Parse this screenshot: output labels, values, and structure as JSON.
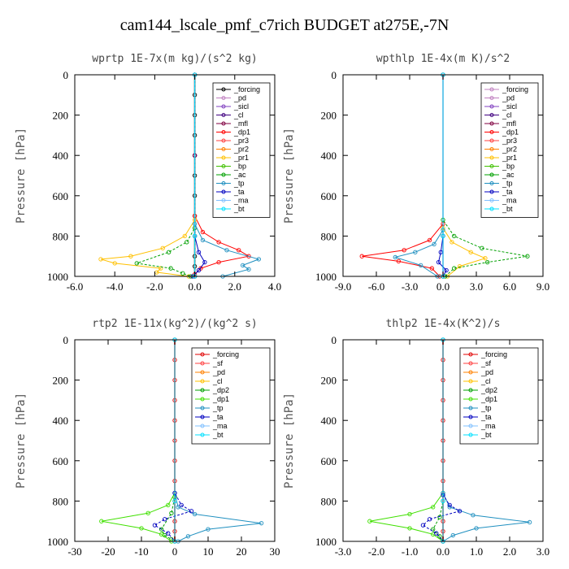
{
  "title": "cam144_lscale_pmf_c7rich  BUDGET at275E,-7N",
  "chart_data": [
    {
      "type": "line",
      "title": "wprtp  1E-7x(m kg)/(s^2 kg)",
      "ylabel": "Pressure [hPa]",
      "xlim": [
        -6,
        4
      ],
      "ylim": [
        1000,
        0
      ],
      "xticks": [
        "-6.0",
        "-4.0",
        "-2.0",
        "0.0",
        "2.0",
        "4.0"
      ],
      "yticks": [
        "0",
        "200",
        "400",
        "600",
        "800",
        "1000"
      ],
      "legend_position": "top-right",
      "series": [
        {
          "name": "_forcing",
          "color": "#000000",
          "x": [
            0,
            0,
            0,
            0,
            0,
            0,
            0,
            0,
            0,
            0,
            0,
            0
          ],
          "y": [
            0,
            100,
            200,
            300,
            400,
            500,
            600,
            700,
            800,
            900,
            950,
            1000
          ]
        },
        {
          "name": "_pd",
          "color": "#c080c0",
          "x": [
            0,
            0,
            0,
            0
          ],
          "y": [
            0,
            400,
            800,
            1000
          ]
        },
        {
          "name": "_sicl",
          "color": "#8040c0",
          "x": [
            0,
            0,
            0,
            0
          ],
          "y": [
            0,
            400,
            800,
            1000
          ]
        },
        {
          "name": "_cl",
          "color": "#400080",
          "x": [
            0,
            0,
            0,
            0
          ],
          "y": [
            0,
            400,
            800,
            1000
          ]
        },
        {
          "name": "_mfl",
          "color": "#800040",
          "x": [
            0,
            0,
            0,
            0
          ],
          "y": [
            0,
            400,
            800,
            1000
          ]
        },
        {
          "name": "_dp1",
          "color": "#ff0000",
          "x": [
            0,
            0,
            0.4,
            1.2,
            2.2,
            2.7,
            1.2,
            0.3,
            0,
            0
          ],
          "y": [
            0,
            700,
            780,
            830,
            870,
            900,
            930,
            960,
            990,
            1000
          ]
        },
        {
          "name": "_pr3",
          "color": "#ff4040",
          "x": [
            0,
            0,
            0
          ],
          "y": [
            0,
            800,
            1000
          ]
        },
        {
          "name": "_pr2",
          "color": "#ff8000",
          "x": [
            0,
            0,
            0
          ],
          "y": [
            0,
            800,
            1000
          ]
        },
        {
          "name": "_pr1",
          "color": "#ffc000",
          "x": [
            0,
            0,
            -0.5,
            -1.6,
            -3.2,
            -4.7,
            -4.0,
            -1.7,
            -1.9,
            -0.3
          ],
          "y": [
            0,
            720,
            800,
            860,
            900,
            915,
            935,
            960,
            980,
            1000
          ]
        },
        {
          "name": "_bp",
          "color": "#40c000",
          "x": [
            0,
            0,
            0
          ],
          "y": [
            0,
            800,
            1000
          ]
        },
        {
          "name": "_ac",
          "color": "#00a000",
          "x": [
            0,
            0,
            -0.4,
            -1.3,
            -2.9,
            -1.2,
            -0.6,
            -0.2
          ],
          "y": [
            0,
            760,
            830,
            880,
            935,
            960,
            985,
            1000
          ]
        },
        {
          "name": "_tp",
          "color": "#2090c0",
          "x": [
            0,
            0,
            0.4,
            1.6,
            3.2,
            2.4,
            2.7,
            1.4
          ],
          "y": [
            0,
            740,
            820,
            870,
            915,
            945,
            965,
            1000
          ]
        },
        {
          "name": "_ta",
          "color": "#0000c0",
          "x": [
            0,
            0,
            0.2,
            0.5,
            0.2,
            -0.1
          ],
          "y": [
            0,
            800,
            880,
            930,
            970,
            1000
          ]
        },
        {
          "name": "_ma",
          "color": "#80c0ff",
          "x": [
            0,
            0,
            0
          ],
          "y": [
            0,
            800,
            1000
          ]
        },
        {
          "name": "_bt",
          "color": "#00e0ff",
          "x": [
            0,
            0,
            0
          ],
          "y": [
            0,
            800,
            1000
          ]
        }
      ]
    },
    {
      "type": "line",
      "title": "wpthlp  1E-4x(m K)/s^2",
      "ylabel": "Pressure [hPa]",
      "xlim": [
        -9,
        9
      ],
      "ylim": [
        1000,
        0
      ],
      "xticks": [
        "-9.0",
        "-6.0",
        "-3.0",
        "0.0",
        "3.0",
        "6.0",
        "9.0"
      ],
      "yticks": [
        "0",
        "200",
        "400",
        "600",
        "800",
        "1000"
      ],
      "legend_position": "top-right",
      "series": [
        {
          "name": "_forcing",
          "color": "#c080c0",
          "x": [
            0,
            0,
            0
          ],
          "y": [
            0,
            800,
            1000
          ]
        },
        {
          "name": "_pd",
          "color": "#c080c0",
          "x": [
            0,
            0,
            0
          ],
          "y": [
            0,
            800,
            1000
          ]
        },
        {
          "name": "_sicl",
          "color": "#8040c0",
          "x": [
            0,
            0,
            0
          ],
          "y": [
            0,
            800,
            1000
          ]
        },
        {
          "name": "_cl",
          "color": "#400080",
          "x": [
            0,
            0,
            0
          ],
          "y": [
            0,
            800,
            1000
          ]
        },
        {
          "name": "_mfl",
          "color": "#800040",
          "x": [
            0,
            0,
            0
          ],
          "y": [
            0,
            800,
            1000
          ]
        },
        {
          "name": "_dp1",
          "color": "#ff0000",
          "x": [
            0,
            0,
            -1.2,
            -3.5,
            -7.3,
            -4.0,
            -1.0,
            -0.3
          ],
          "y": [
            0,
            740,
            820,
            870,
            900,
            925,
            960,
            1000
          ]
        },
        {
          "name": "_pr3",
          "color": "#ff4040",
          "x": [
            0,
            0,
            0
          ],
          "y": [
            0,
            800,
            1000
          ]
        },
        {
          "name": "_pr2",
          "color": "#ff8000",
          "x": [
            0,
            0,
            0
          ],
          "y": [
            0,
            800,
            1000
          ]
        },
        {
          "name": "_pr1",
          "color": "#ffc000",
          "x": [
            0,
            0,
            0.8,
            2.5,
            3.8,
            1.5,
            0.4
          ],
          "y": [
            0,
            760,
            830,
            880,
            910,
            950,
            1000
          ]
        },
        {
          "name": "_bp",
          "color": "#40c000",
          "x": [
            0,
            0,
            0
          ],
          "y": [
            0,
            800,
            1000
          ]
        },
        {
          "name": "_ac",
          "color": "#00a000",
          "x": [
            0,
            0,
            1.0,
            3.5,
            7.6,
            4.0,
            1.0,
            0.2
          ],
          "y": [
            0,
            720,
            800,
            860,
            900,
            930,
            960,
            1000
          ]
        },
        {
          "name": "_tp",
          "color": "#2090c0",
          "x": [
            0,
            0,
            -0.8,
            -2.5,
            -4.3,
            -2.0,
            -0.5
          ],
          "y": [
            0,
            770,
            840,
            880,
            905,
            945,
            1000
          ]
        },
        {
          "name": "_ta",
          "color": "#0000c0",
          "x": [
            0,
            0,
            -0.2,
            -0.4,
            0.3,
            0
          ],
          "y": [
            0,
            800,
            880,
            930,
            970,
            1000
          ]
        },
        {
          "name": "_ma",
          "color": "#80c0ff",
          "x": [
            0,
            0,
            0
          ],
          "y": [
            0,
            800,
            1000
          ]
        },
        {
          "name": "_bt",
          "color": "#00e0ff",
          "x": [
            0,
            0,
            0
          ],
          "y": [
            0,
            800,
            1000
          ]
        }
      ]
    },
    {
      "type": "line",
      "title": "rtp2  1E-11x(kg^2)/(kg^2 s)",
      "ylabel": "Pressure [hPa]",
      "xlim": [
        -30,
        30
      ],
      "ylim": [
        1000,
        0
      ],
      "xticks": [
        "-30",
        "-20",
        "-10",
        "0",
        "10",
        "20",
        "30"
      ],
      "yticks": [
        "0",
        "200",
        "400",
        "600",
        "800",
        "1000"
      ],
      "legend_position": "top-right",
      "series": [
        {
          "name": "_forcing",
          "color": "#e00000",
          "x": [
            0,
            0,
            0,
            0,
            0,
            0,
            0,
            0,
            0,
            0,
            0,
            0
          ],
          "y": [
            0,
            100,
            200,
            300,
            400,
            500,
            600,
            700,
            800,
            900,
            950,
            1000
          ]
        },
        {
          "name": "_sf",
          "color": "#ff4040",
          "x": [
            0,
            0,
            0
          ],
          "y": [
            0,
            800,
            1000
          ]
        },
        {
          "name": "_pd",
          "color": "#ff8000",
          "x": [
            0,
            0,
            0
          ],
          "y": [
            0,
            800,
            1000
          ]
        },
        {
          "name": "_cl",
          "color": "#ffc000",
          "x": [
            0,
            0,
            0
          ],
          "y": [
            0,
            800,
            1000
          ]
        },
        {
          "name": "_dp2",
          "color": "#00a000",
          "x": [
            0,
            0,
            -1,
            -4,
            -3,
            -1,
            0
          ],
          "y": [
            0,
            780,
            860,
            940,
            970,
            990,
            1000
          ]
        },
        {
          "name": "_dp1",
          "color": "#40e000",
          "x": [
            0,
            0,
            -2,
            -8,
            -22,
            -10,
            -4,
            -1
          ],
          "y": [
            0,
            760,
            820,
            860,
            900,
            935,
            965,
            1000
          ]
        },
        {
          "name": "_tp",
          "color": "#2090c0",
          "x": [
            0,
            0,
            1,
            6,
            26,
            10,
            4,
            1
          ],
          "y": [
            0,
            760,
            830,
            865,
            910,
            940,
            975,
            1000
          ]
        },
        {
          "name": "_ta",
          "color": "#0000c0",
          "x": [
            0,
            0,
            2,
            5,
            -3,
            -6,
            -2,
            0
          ],
          "y": [
            0,
            760,
            820,
            850,
            890,
            920,
            960,
            1000
          ]
        },
        {
          "name": "_ma",
          "color": "#80c0ff",
          "x": [
            0,
            0,
            0
          ],
          "y": [
            0,
            800,
            1000
          ]
        },
        {
          "name": "_bt",
          "color": "#00e0ff",
          "x": [
            0,
            0,
            0
          ],
          "y": [
            0,
            800,
            1000
          ]
        }
      ]
    },
    {
      "type": "line",
      "title": "thlp2  1E-4x(K^2)/s",
      "ylabel": "Pressure [hPa]",
      "xlim": [
        -3,
        3
      ],
      "ylim": [
        1000,
        0
      ],
      "xticks": [
        "-3.0",
        "-2.0",
        "-1.0",
        "0.0",
        "1.0",
        "2.0",
        "3.0"
      ],
      "yticks": [
        "0",
        "200",
        "400",
        "600",
        "800",
        "1000"
      ],
      "legend_position": "top-right",
      "series": [
        {
          "name": "_forcing",
          "color": "#e00000",
          "x": [
            0,
            0,
            0,
            0,
            0,
            0,
            0,
            0,
            0,
            0,
            0,
            0
          ],
          "y": [
            0,
            100,
            200,
            300,
            400,
            500,
            600,
            700,
            800,
            900,
            950,
            1000
          ]
        },
        {
          "name": "_sf",
          "color": "#ff4040",
          "x": [
            0,
            0,
            0
          ],
          "y": [
            0,
            800,
            1000
          ]
        },
        {
          "name": "_pd",
          "color": "#ff8000",
          "x": [
            0,
            0,
            0
          ],
          "y": [
            0,
            800,
            1000
          ]
        },
        {
          "name": "_cl",
          "color": "#ffc000",
          "x": [
            0,
            0,
            0
          ],
          "y": [
            0,
            800,
            1000
          ]
        },
        {
          "name": "_dp2",
          "color": "#00a000",
          "x": [
            0,
            0,
            -0.1,
            -0.3,
            -0.1,
            0
          ],
          "y": [
            0,
            800,
            880,
            940,
            975,
            1000
          ]
        },
        {
          "name": "_dp1",
          "color": "#40e000",
          "x": [
            0,
            0,
            -0.3,
            -1.0,
            -2.2,
            -1.0,
            -0.3,
            0
          ],
          "y": [
            0,
            760,
            830,
            865,
            900,
            935,
            965,
            1000
          ]
        },
        {
          "name": "_tp",
          "color": "#2090c0",
          "x": [
            0,
            0,
            0.2,
            0.9,
            2.6,
            1.0,
            0.3,
            0
          ],
          "y": [
            0,
            760,
            830,
            870,
            905,
            935,
            970,
            1000
          ]
        },
        {
          "name": "_ta",
          "color": "#0000c0",
          "x": [
            0,
            0,
            0.2,
            0.5,
            -0.4,
            -0.6,
            -0.2,
            0
          ],
          "y": [
            0,
            770,
            820,
            850,
            890,
            920,
            960,
            1000
          ]
        },
        {
          "name": "_ma",
          "color": "#80c0ff",
          "x": [
            0,
            0,
            0
          ],
          "y": [
            0,
            800,
            1000
          ]
        },
        {
          "name": "_bt",
          "color": "#00e0ff",
          "x": [
            0,
            0,
            0
          ],
          "y": [
            0,
            800,
            1000
          ]
        }
      ]
    }
  ]
}
